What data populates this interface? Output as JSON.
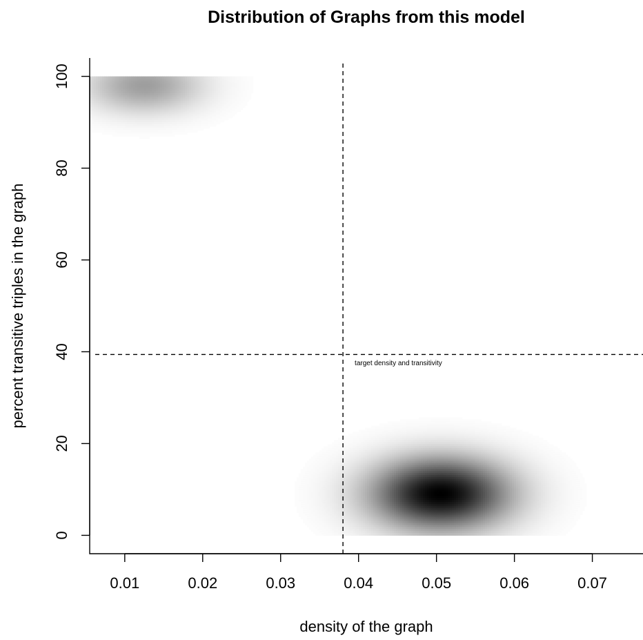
{
  "chart_data": {
    "type": "heatmap",
    "title": "Distribution of Graphs from this model",
    "xlabel": "density of the graph",
    "ylabel": "percent transitive triples in the graph",
    "xlim": [
      0.0055,
      0.0765
    ],
    "ylim": [
      -4,
      104
    ],
    "xticks": [
      0.01,
      0.02,
      0.03,
      0.04,
      0.05,
      0.06,
      0.07
    ],
    "xtick_labels": [
      "0.01",
      "0.02",
      "0.03",
      "0.04",
      "0.05",
      "0.06",
      "0.07"
    ],
    "yticks": [
      0,
      20,
      40,
      60,
      80,
      100
    ],
    "ytick_labels": [
      "0",
      "20",
      "40",
      "60",
      "80",
      "100"
    ],
    "color_scale": "white to black (higher density = darker)",
    "density_regions": [
      {
        "x_range": [
          0.0055,
          0.0705
        ],
        "y_range": [
          0,
          28
        ],
        "peak_x": 0.0505,
        "peak_y": 9,
        "sd_x": 0.0062,
        "sd_y": 5.5,
        "peak_intensity": 1.0
      },
      {
        "x_range": [
          0.0055,
          0.0295
        ],
        "y_range": [
          84,
          100
        ],
        "peak_x": 0.0125,
        "peak_y": 98,
        "sd_x": 0.0052,
        "sd_y": 4.2,
        "peak_intensity": 0.38
      }
    ],
    "reference_lines": [
      {
        "orientation": "vertical",
        "value": 0.038,
        "style": "dashed"
      },
      {
        "orientation": "horizontal",
        "value": 39.4,
        "style": "dashed"
      }
    ],
    "annotation": {
      "text": "target density and transitivity",
      "x": 0.0395,
      "y": 37.5
    },
    "grid": false,
    "legend": "none"
  }
}
